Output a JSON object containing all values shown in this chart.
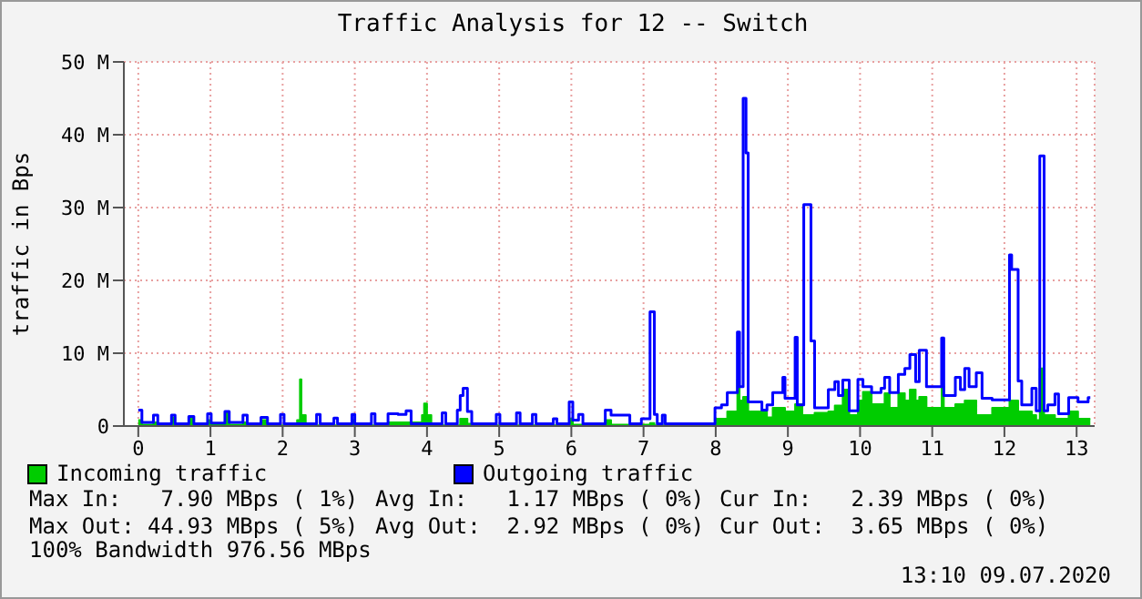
{
  "chart_data": {
    "type": "step",
    "title": "Traffic Analysis for 12 -- Switch",
    "ylabel": "traffic in Bps",
    "xlim": [
      -0.2,
      13.25
    ],
    "xticks": [
      0,
      1,
      2,
      3,
      4,
      5,
      6,
      7,
      8,
      9,
      10,
      11,
      12,
      13
    ],
    "ylim": [
      0,
      50
    ],
    "yticks": [
      0,
      {
        "value": 10,
        "label": "10 M"
      },
      {
        "value": 20,
        "label": "20 M"
      },
      {
        "value": 30,
        "label": "30 M"
      },
      {
        "value": 40,
        "label": "40 M"
      },
      {
        "value": 50,
        "label": "50 M"
      }
    ],
    "grid": true,
    "legend": "bottom",
    "series": [
      {
        "name": "Incoming traffic",
        "type": "area",
        "color": "#00cc00",
        "x": [
          0,
          0.05,
          0.21,
          0.27,
          0.46,
          0.51,
          0.7,
          0.77,
          0.96,
          1.01,
          1.2,
          1.26,
          1.45,
          1.51,
          1.7,
          1.79,
          2.2,
          2.24,
          2.26,
          2.32,
          2.96,
          3.0,
          3.46,
          3.71,
          3.93,
          3.96,
          4.0,
          4.06,
          4.46,
          4.56,
          4.62,
          5.97,
          6.02,
          6.47,
          6.55,
          7.09,
          7.15,
          7.99,
          8.16,
          8.3,
          8.33,
          8.38,
          8.45,
          8.71,
          8.79,
          8.96,
          9.1,
          9.2,
          9.37,
          9.56,
          9.65,
          9.76,
          9.85,
          9.97,
          10.04,
          10.16,
          10.34,
          10.41,
          10.53,
          10.62,
          10.69,
          10.77,
          10.82,
          10.92,
          11.13,
          11.16,
          11.32,
          11.45,
          11.61,
          11.83,
          12.07,
          12.19,
          12.38,
          12.44,
          12.49,
          12.55,
          12.7,
          12.89,
          13.02,
          13.19
        ],
        "values": [
          0.8,
          0.2,
          0.5,
          0.1,
          1.2,
          0.1,
          1,
          0.1,
          0.8,
          0.2,
          1.8,
          0.2,
          0.5,
          0.1,
          0.8,
          0.1,
          0.8,
          6.4,
          1.5,
          0.1,
          0.8,
          0.1,
          0.5,
          0.5,
          1.5,
          3.1,
          1.5,
          0.1,
          1,
          0.3,
          0.1,
          1,
          0.2,
          0.8,
          0.2,
          0.4,
          0.1,
          1,
          2,
          6.3,
          3.5,
          4,
          2,
          1.2,
          2.5,
          2,
          3,
          1.5,
          1.8,
          2,
          2.8,
          5,
          1.5,
          3.5,
          4.7,
          3,
          4.5,
          2.5,
          4.5,
          3.5,
          5,
          3.5,
          4,
          2.5,
          5.5,
          2.5,
          3,
          3.5,
          1.5,
          2.5,
          3.5,
          2,
          1.5,
          0.8,
          7.9,
          1.5,
          1,
          2,
          1,
          1
        ]
      },
      {
        "name": "Outgoing traffic",
        "color": "#0000ff",
        "x": [
          0,
          0.05,
          0.21,
          0.27,
          0.46,
          0.51,
          0.7,
          0.77,
          0.96,
          1.01,
          1.2,
          1.26,
          1.45,
          1.51,
          1.7,
          1.79,
          1.97,
          2.02,
          2.47,
          2.52,
          2.71,
          2.76,
          2.96,
          3.0,
          3.23,
          3.28,
          3.46,
          3.6,
          3.71,
          3.78,
          4.21,
          4.26,
          4.42,
          4.46,
          4.5,
          4.56,
          4.62,
          4.96,
          5.01,
          5.24,
          5.29,
          5.46,
          5.51,
          5.75,
          5.8,
          5.97,
          6.02,
          6.1,
          6.16,
          6.47,
          6.55,
          6.81,
          6.97,
          7.09,
          7.15,
          7.19,
          7.26,
          7.3,
          7.99,
          8.08,
          8.16,
          8.3,
          8.33,
          8.38,
          8.42,
          8.45,
          8.64,
          8.71,
          8.79,
          8.93,
          8.96,
          9.1,
          9.13,
          9.22,
          9.32,
          9.37,
          9.56,
          9.65,
          9.7,
          9.76,
          9.85,
          9.97,
          10.04,
          10.16,
          10.29,
          10.34,
          10.41,
          10.53,
          10.62,
          10.69,
          10.77,
          10.82,
          10.92,
          11.13,
          11.16,
          11.32,
          11.39,
          11.45,
          11.51,
          11.61,
          11.69,
          11.83,
          12.07,
          12.1,
          12.19,
          12.24,
          12.38,
          12.44,
          12.49,
          12.55,
          12.6,
          12.7,
          12.75,
          12.89,
          13.02,
          13.16,
          13.19
        ],
        "values": [
          2.2,
          0.5,
          1.5,
          0.3,
          1.5,
          0.3,
          1.3,
          0.3,
          1.7,
          0.4,
          2,
          0.5,
          1.5,
          0.3,
          1.2,
          0.3,
          1.6,
          0.3,
          1.6,
          0.3,
          1.1,
          0.3,
          1.6,
          0.3,
          1.7,
          0.3,
          1.7,
          1.6,
          2.1,
          0.3,
          1.8,
          0.3,
          2.2,
          4.2,
          5.2,
          2,
          0.3,
          1.6,
          0.3,
          1.8,
          0.3,
          1.6,
          0.3,
          1,
          0.3,
          3.3,
          0.8,
          1.6,
          0.3,
          2.2,
          1.5,
          0.3,
          1,
          15.7,
          1.6,
          0.3,
          1.5,
          0.3,
          2.5,
          2.9,
          4.6,
          12.9,
          5.4,
          45,
          37.5,
          3.3,
          2.2,
          2.9,
          4.6,
          6.7,
          3.8,
          12.2,
          2.9,
          30.4,
          11.7,
          2.5,
          5,
          6.1,
          4.2,
          6.3,
          2.1,
          6.4,
          5.4,
          4.6,
          5.2,
          6.7,
          4.6,
          7.1,
          7.9,
          9.8,
          6.1,
          10.4,
          5.4,
          12.1,
          4.2,
          6.7,
          5,
          7.9,
          5.4,
          7.3,
          3.8,
          3.6,
          23.5,
          21.5,
          6.2,
          2.9,
          5.2,
          2.1,
          37.1,
          2.1,
          2.9,
          4.4,
          1.7,
          3.9,
          3.3,
          3.9,
          3.9
        ]
      }
    ],
    "annotations": [
      "Max In:   7.90 MBps ( 1%)",
      "Avg In:   1.17 MBps ( 0%)",
      "Cur In:   2.39 MBps ( 0%)",
      "Max Out: 44.93 MBps ( 5%)",
      "Avg Out:  2.92 MBps ( 0%)",
      "Cur Out:  3.65 MBps ( 0%)",
      "100% Bandwidth 976.56 MBps",
      "13:10 09.07.2020"
    ]
  }
}
